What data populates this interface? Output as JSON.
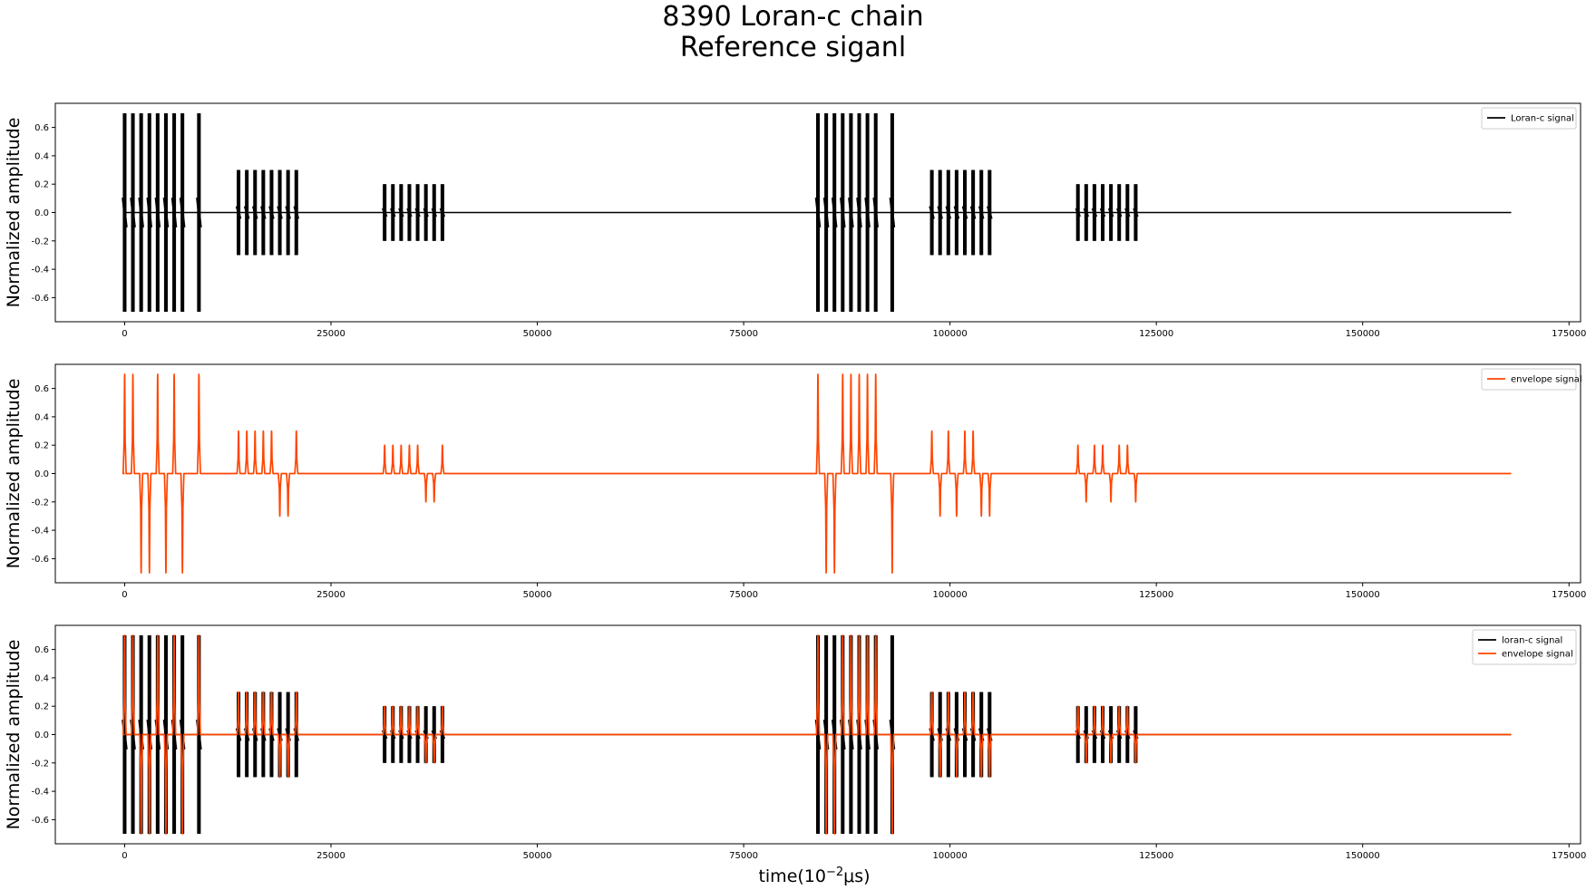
{
  "figure": {
    "title_line1": "8390 Loran-c chain",
    "title_line2": "Reference siganl"
  },
  "colors": {
    "loran": "#000000",
    "envelope": "#ff4500",
    "axes": "#000000"
  },
  "chart_data": [
    {
      "type": "line",
      "ylabel": "Normalized amplitude",
      "xlabel": "",
      "xlim": [
        -8400,
        176400
      ],
      "ylim": [
        -0.77,
        0.77
      ],
      "xticks": [
        0,
        25000,
        50000,
        75000,
        100000,
        125000,
        150000,
        175000
      ],
      "yticks": [
        -0.6,
        -0.4,
        -0.2,
        0.0,
        0.2,
        0.4,
        0.6
      ],
      "legend": "top-right",
      "series": [
        {
          "name": "Loran-c signal",
          "kind": "pulses",
          "color": "#000000"
        }
      ]
    },
    {
      "type": "line",
      "ylabel": "Normalized amplitude",
      "xlabel": "",
      "xlim": [
        -8400,
        176400
      ],
      "ylim": [
        -0.77,
        0.77
      ],
      "xticks": [
        0,
        25000,
        50000,
        75000,
        100000,
        125000,
        150000,
        175000
      ],
      "yticks": [
        -0.6,
        -0.4,
        -0.2,
        0.0,
        0.2,
        0.4,
        0.6
      ],
      "legend": "top-right",
      "series": [
        {
          "name": "envelope signal",
          "kind": "envelope",
          "color": "#ff4500"
        }
      ]
    },
    {
      "type": "line",
      "ylabel": "Normalized amplitude",
      "xlabel": "time(10⁻²μs)",
      "xlim": [
        -8400,
        176400
      ],
      "ylim": [
        -0.77,
        0.77
      ],
      "xticks": [
        0,
        25000,
        50000,
        75000,
        100000,
        125000,
        150000,
        175000
      ],
      "yticks": [
        -0.6,
        -0.4,
        -0.2,
        0.0,
        0.2,
        0.4,
        0.6
      ],
      "legend": "top-right",
      "series": [
        {
          "name": "loran-c signal",
          "kind": "pulses",
          "color": "#000000"
        },
        {
          "name": "envelope signal",
          "kind": "envelope",
          "color": "#ff4500"
        }
      ]
    }
  ],
  "signal": {
    "x_end": 168000,
    "pulse_groups": [
      {
        "start": 0,
        "spacing": 1000,
        "amp": 0.7,
        "ninth_at": 9000,
        "phase": [
          1,
          1,
          -1,
          -1,
          1,
          -1,
          1,
          -1,
          1
        ]
      },
      {
        "start": 13800,
        "spacing": 1000,
        "amp": 0.3,
        "phase": [
          1,
          1,
          1,
          1,
          1,
          -1,
          -1,
          1
        ]
      },
      {
        "start": 31500,
        "spacing": 1000,
        "amp": 0.2,
        "phase": [
          1,
          1,
          1,
          1,
          1,
          -1,
          -1,
          1
        ]
      },
      {
        "start": 84000,
        "spacing": 1000,
        "amp": 0.7,
        "ninth_at": 93000,
        "phase": [
          1,
          -1,
          -1,
          1,
          1,
          1,
          1,
          1,
          -1
        ]
      },
      {
        "start": 97800,
        "spacing": 1000,
        "amp": 0.3,
        "phase": [
          1,
          -1,
          1,
          -1,
          1,
          1,
          -1,
          -1
        ]
      },
      {
        "start": 115500,
        "spacing": 1000,
        "amp": 0.2,
        "phase": [
          1,
          -1,
          1,
          1,
          -1,
          1,
          1,
          -1
        ]
      }
    ]
  }
}
